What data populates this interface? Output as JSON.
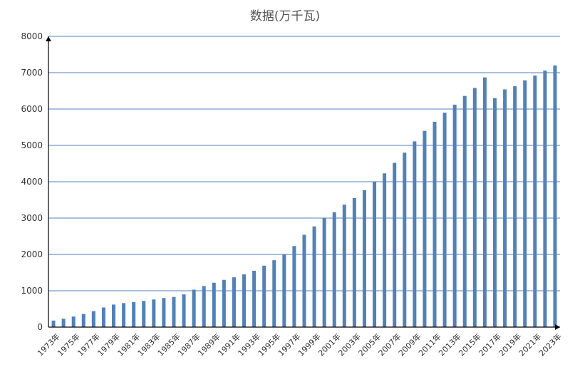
{
  "chart_data": {
    "type": "bar",
    "title": "数据(万千瓦)",
    "xlabel": "",
    "ylabel": "",
    "ylim": [
      0,
      8000
    ],
    "yticks": [
      0,
      1000,
      2000,
      3000,
      4000,
      5000,
      6000,
      7000,
      8000
    ],
    "grid": true,
    "legend": "none",
    "bar_color": "#4f81bd",
    "grid_color": "#4f81bd",
    "categories": [
      "1973年",
      "1974年",
      "1975年",
      "1976年",
      "1977年",
      "1978年",
      "1979年",
      "1980年",
      "1981年",
      "1982年",
      "1983年",
      "1984年",
      "1985年",
      "1986年",
      "1987年",
      "1988年",
      "1989年",
      "1990年",
      "1991年",
      "1992年",
      "1993年",
      "1994年",
      "1995年",
      "1996年",
      "1997年",
      "1998年",
      "1999年",
      "2000年",
      "2001年",
      "2002年",
      "2003年",
      "2004年",
      "2005年",
      "2006年",
      "2007年",
      "2008年",
      "2009年",
      "2010年",
      "2011年",
      "2012年",
      "2013年",
      "2014年",
      "2015年",
      "2016年",
      "2017年",
      "2018年",
      "2019年",
      "2020年",
      "2021年",
      "2022年",
      "2023年"
    ],
    "tick_labels": [
      "1973年",
      "1975年",
      "1977年",
      "1979年",
      "1981年",
      "1983年",
      "1985年",
      "1987年",
      "1989年",
      "1991年",
      "1993年",
      "1995年",
      "1997年",
      "1999年",
      "2001年",
      "2003年",
      "2005年",
      "2007年",
      "2009年",
      "2011年",
      "2013年",
      "2015年",
      "2017年",
      "2019年",
      "2021年",
      "2023年"
    ],
    "values": [
      180,
      230,
      290,
      360,
      440,
      540,
      620,
      660,
      690,
      720,
      760,
      800,
      830,
      900,
      1030,
      1130,
      1220,
      1300,
      1370,
      1450,
      1550,
      1690,
      1840,
      2000,
      2230,
      2540,
      2770,
      2990,
      3160,
      3370,
      3550,
      3770,
      4000,
      4230,
      4520,
      4800,
      5110,
      5400,
      5650,
      5900,
      6120,
      6360,
      6580,
      6870,
      6300,
      6540,
      6630,
      6790,
      6920,
      7060,
      7200
    ]
  }
}
